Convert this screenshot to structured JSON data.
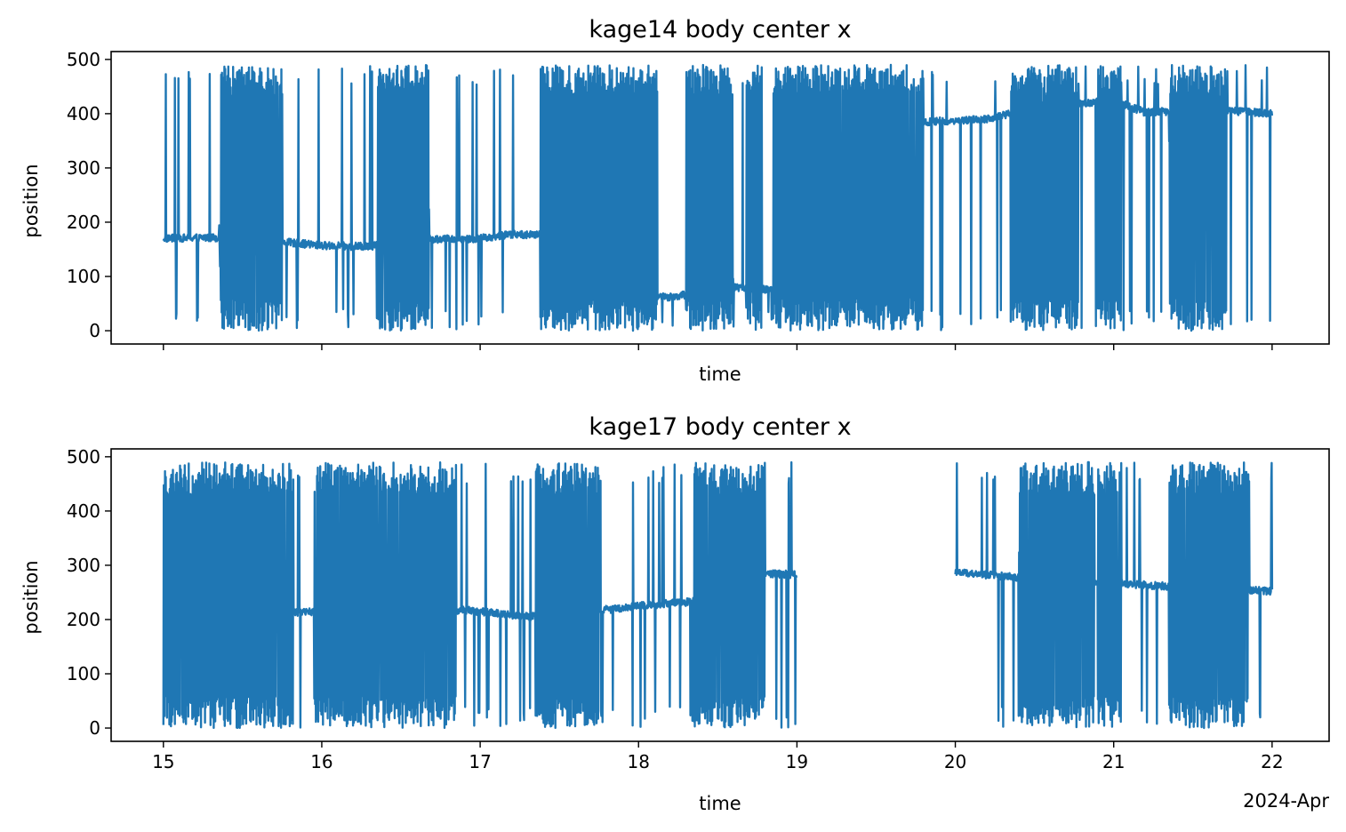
{
  "figure": {
    "date_offset_label": "2024-Apr",
    "line_color": "#1f77b4"
  },
  "chart_data": [
    {
      "type": "line",
      "title": "kage14 body center x",
      "xlabel": "time",
      "ylabel": "position",
      "xlim": [
        14.67,
        22.36
      ],
      "ylim": [
        -24.5,
        514.5
      ],
      "xticks": [
        15,
        16,
        17,
        18,
        19,
        20,
        21,
        22
      ],
      "xtick_labels_visible": false,
      "yticks": [
        0,
        100,
        200,
        300,
        400,
        500
      ],
      "ytick_labels": [
        "0",
        "100",
        "200",
        "300",
        "400",
        "500"
      ],
      "x_range": [
        15.0,
        22.0
      ],
      "missing_intervals": [],
      "baseline": [
        [
          15.0,
          170
        ],
        [
          15.3,
          172
        ],
        [
          15.7,
          165
        ],
        [
          16.0,
          157
        ],
        [
          16.3,
          155
        ],
        [
          16.5,
          168
        ],
        [
          17.0,
          170
        ],
        [
          17.2,
          178
        ],
        [
          17.4,
          176
        ],
        [
          17.6,
          70
        ],
        [
          18.2,
          62
        ],
        [
          18.6,
          80
        ],
        [
          19.3,
          65
        ],
        [
          19.7,
          60
        ],
        [
          19.8,
          385
        ],
        [
          20.2,
          390
        ],
        [
          20.5,
          410
        ],
        [
          21.0,
          425
        ],
        [
          21.2,
          402
        ],
        [
          21.6,
          408
        ],
        [
          22.0,
          400
        ]
      ],
      "dense_spans": [
        [
          15.35,
          15.75
        ],
        [
          16.35,
          16.68
        ],
        [
          17.38,
          18.12
        ],
        [
          18.3,
          18.6
        ],
        [
          18.68,
          18.78
        ],
        [
          18.85,
          19.1
        ],
        [
          19.1,
          19.8
        ],
        [
          20.35,
          20.78
        ],
        [
          20.9,
          21.05
        ],
        [
          21.35,
          21.72
        ]
      ],
      "sparse_span": [
        15.0,
        22.0
      ],
      "y_extremes": [
        0,
        490
      ]
    },
    {
      "type": "line",
      "title": "kage17 body center x",
      "xlabel": "time",
      "ylabel": "position",
      "xlim": [
        14.67,
        22.36
      ],
      "ylim": [
        -24.5,
        514.5
      ],
      "xticks": [
        15,
        16,
        17,
        18,
        19,
        20,
        21,
        22
      ],
      "xtick_labels": [
        "15",
        "16",
        "17",
        "18",
        "19",
        "20",
        "21",
        "22"
      ],
      "yticks": [
        0,
        100,
        200,
        300,
        400,
        500
      ],
      "ytick_labels": [
        "0",
        "100",
        "200",
        "300",
        "400",
        "500"
      ],
      "x_range": [
        15.0,
        22.0
      ],
      "missing_intervals": [
        [
          19.0,
          20.0
        ]
      ],
      "baseline": [
        [
          15.0,
          300
        ],
        [
          15.4,
          250
        ],
        [
          15.8,
          212
        ],
        [
          16.0,
          215
        ],
        [
          16.5,
          210
        ],
        [
          16.9,
          218
        ],
        [
          17.3,
          205
        ],
        [
          17.7,
          215
        ],
        [
          18.0,
          225
        ],
        [
          18.3,
          232
        ],
        [
          18.6,
          238
        ],
        [
          18.8,
          285
        ],
        [
          19.0,
          283
        ],
        [
          20.0,
          287
        ],
        [
          20.5,
          275
        ],
        [
          20.9,
          268
        ],
        [
          21.3,
          262
        ],
        [
          21.7,
          258
        ],
        [
          22.0,
          252
        ]
      ],
      "dense_spans": [
        [
          15.0,
          15.35
        ],
        [
          15.35,
          15.82
        ],
        [
          15.95,
          16.38
        ],
        [
          16.38,
          16.85
        ],
        [
          17.35,
          17.75
        ],
        [
          18.35,
          18.8
        ],
        [
          20.4,
          20.88
        ],
        [
          20.9,
          21.05
        ],
        [
          21.35,
          21.85
        ]
      ],
      "sparse_span": [
        15.0,
        22.0
      ],
      "y_extremes": [
        0,
        490
      ]
    }
  ]
}
